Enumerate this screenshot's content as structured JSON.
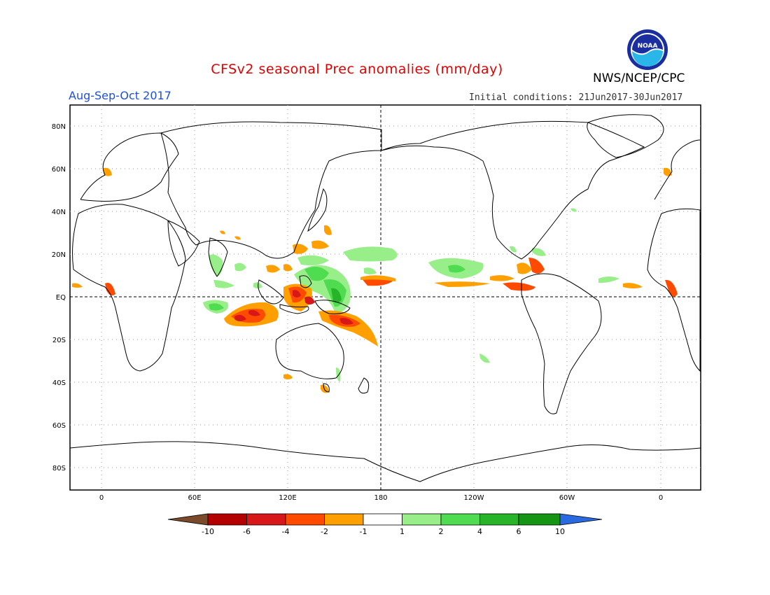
{
  "header": {
    "title": "CFSv2 seasonal Prec anomalies (mm/day)",
    "period": "Aug-Sep-Oct 2017",
    "initial_conditions": "Initial conditions: 21Jun2017-30Jun2017",
    "org": "NWS/NCEP/CPC",
    "logo_text": "NOAA"
  },
  "map": {
    "lat_labels": [
      "80N",
      "60N",
      "40N",
      "20N",
      "EQ",
      "20S",
      "40S",
      "60S",
      "80S"
    ],
    "lon_labels": [
      "0",
      "60E",
      "120E",
      "180",
      "120W",
      "60W",
      "0"
    ]
  },
  "colorbar": {
    "labels": [
      "-10",
      "-6",
      "-4",
      "-2",
      "-1",
      "1",
      "2",
      "4",
      "6",
      "10"
    ],
    "colors": [
      "#7a4a2a",
      "#b40000",
      "#d81818",
      "#ff4a00",
      "#ffa000",
      "#ffffff",
      "#98ee88",
      "#50dc50",
      "#28b428",
      "#149614",
      "#2a6ae0"
    ]
  },
  "colors": {
    "title": "#e00000",
    "period": "#1f4fd6",
    "dry_strong": "#d81818",
    "dry": "#ff4a00",
    "dry_weak": "#ffa000",
    "wet_weak": "#98ee88",
    "wet": "#50dc50",
    "wet_strong": "#28b428"
  }
}
